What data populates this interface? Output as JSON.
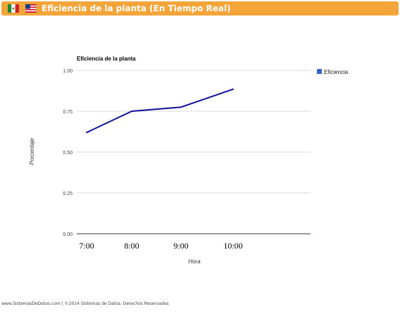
{
  "header": {
    "title": "Eficiencia de la planta (En Tiempo Real)",
    "lang_flags": [
      "mexico-flag-icon",
      "us-flag-icon"
    ],
    "accent_color": "#f3a53a"
  },
  "chart_data": {
    "type": "line",
    "title": "Eficiencia de la planta",
    "xlabel": "Hora",
    "ylabel": "Porcentaje",
    "categories": [
      "7:00",
      "8:00",
      "9:00",
      "10:00"
    ],
    "series": [
      {
        "name": "Eficiencia",
        "values": [
          0.62,
          0.75,
          0.775,
          0.885
        ],
        "color": "#0d0d9a"
      }
    ],
    "yticks": [
      "0.00",
      "0.25",
      "0.50",
      "0.75",
      "1.00"
    ],
    "ylim": [
      0,
      1
    ],
    "grid": true,
    "legend": "right",
    "legend_color": "#3366cc"
  },
  "footer": {
    "text": "www.SistemasDeDatos.com | ©2014 Sistemas de Datos. Derechos Reservados"
  }
}
